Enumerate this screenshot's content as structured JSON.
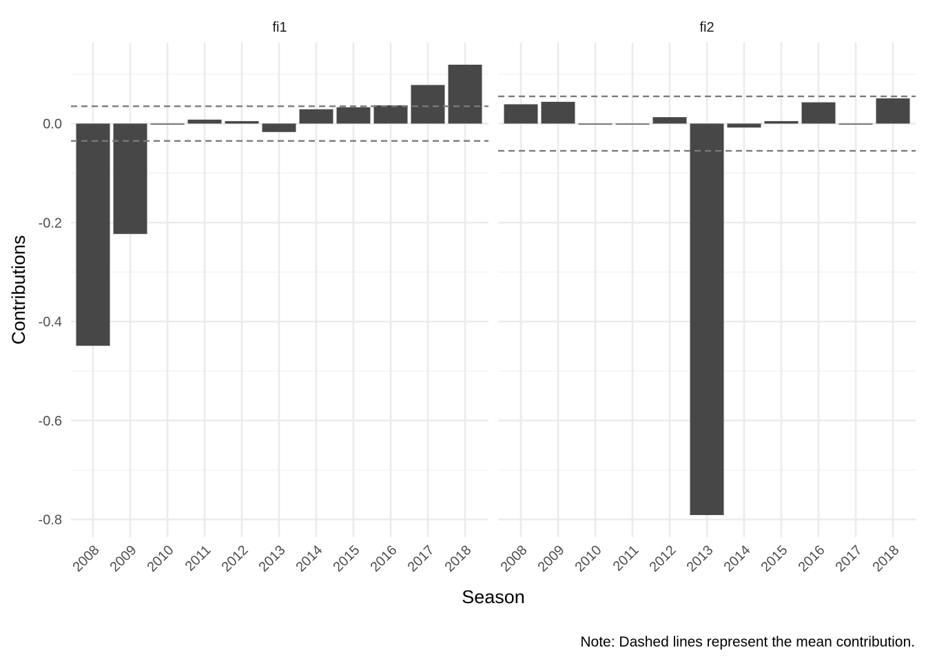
{
  "chart_data": {
    "type": "bar",
    "facet_by": "panel",
    "xlabel": "Season",
    "ylabel": "Contributions",
    "caption": "Note: Dashed lines represent the mean contribution.",
    "categories": [
      "2008",
      "2009",
      "2010",
      "2011",
      "2012",
      "2013",
      "2014",
      "2015",
      "2016",
      "2017",
      "2018"
    ],
    "ylim": [
      -0.82,
      0.165
    ],
    "yticks": [
      -0.8,
      -0.6,
      -0.4,
      -0.2,
      0.0
    ],
    "ytick_labels": [
      "-0.8",
      "-0.6",
      "-0.4",
      "-0.2",
      "0.0"
    ],
    "grid": true,
    "legend": "none",
    "bar_color": "#474747",
    "mean_line_color": "#7a7a7a",
    "panels": [
      {
        "label": "fi1",
        "values": [
          -0.449,
          -0.223,
          -0.002,
          0.008,
          0.005,
          -0.017,
          0.029,
          0.033,
          0.037,
          0.078,
          0.119
        ],
        "mean_lines": [
          0.035,
          -0.035
        ]
      },
      {
        "label": "fi2",
        "values": [
          0.039,
          0.044,
          0.0,
          -0.001,
          0.013,
          -0.791,
          -0.008,
          0.005,
          0.043,
          -0.002,
          0.051
        ],
        "mean_lines": [
          0.055,
          -0.055
        ]
      }
    ]
  }
}
